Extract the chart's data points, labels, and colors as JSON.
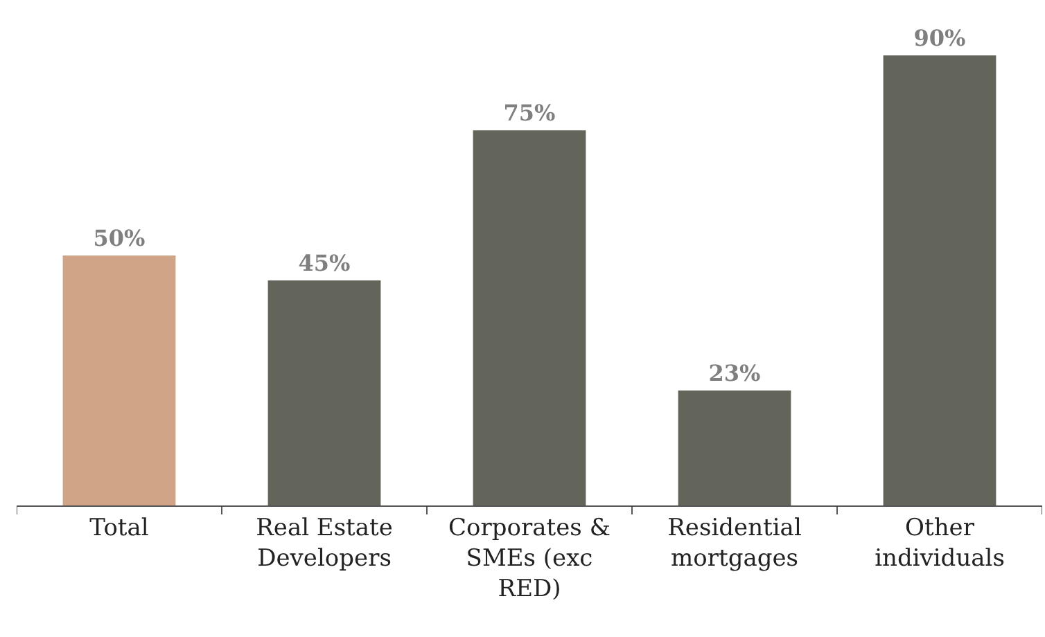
{
  "chart_data": {
    "type": "bar",
    "categories": [
      "Total",
      "Real Estate Developers",
      "Corporates & SMEs (exc RED)",
      "Residential mortgages",
      "Other individuals"
    ],
    "values": [
      50,
      45,
      75,
      23,
      90
    ],
    "value_labels": [
      "50%",
      "45%",
      "75%",
      "23%",
      "90%"
    ],
    "colors": [
      "#d0a587",
      "#64655a",
      "#64655a",
      "#64655a",
      "#64655a"
    ],
    "legend": false
  }
}
